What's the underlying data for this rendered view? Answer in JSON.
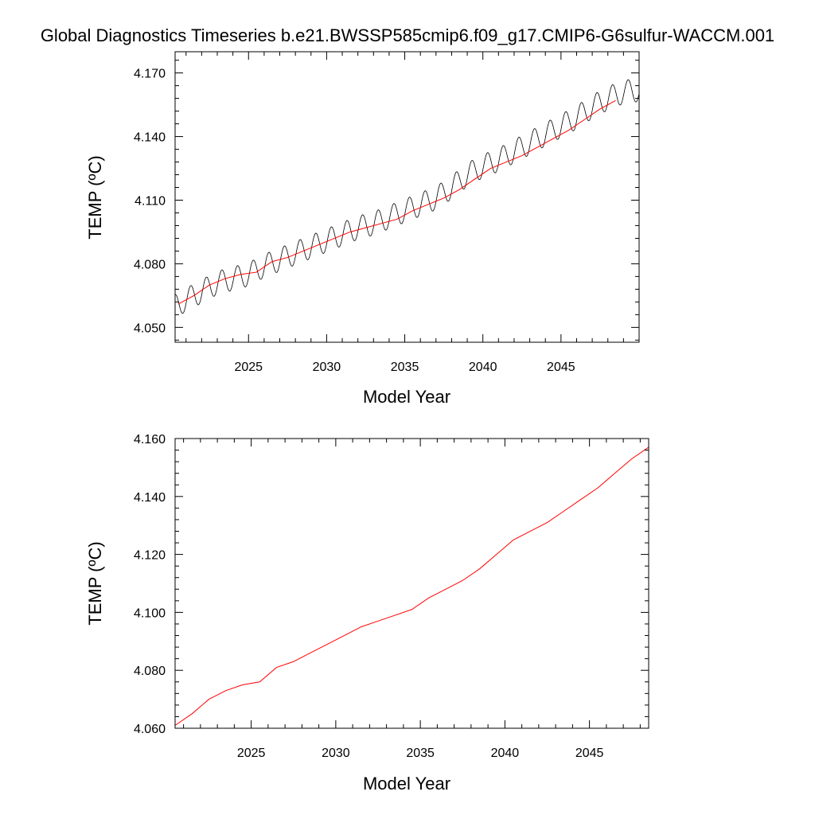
{
  "figure": {
    "title": "Global Diagnostics Timeseries b.e21.BWSSP585cmip6.f09_g17.CMIP6-G6sulfur-WACCM.001"
  },
  "chart_data": [
    {
      "type": "line",
      "xlabel": "Model Year",
      "ylabel": "TEMP (ºC)",
      "xlim": [
        2020.3,
        2050.0
      ],
      "ylim": [
        4.043,
        4.18
      ],
      "x_ticks": [
        2025,
        2030,
        2035,
        2040,
        2045
      ],
      "x_tick_labels": [
        "2025",
        "2030",
        "2035",
        "2040",
        "2045"
      ],
      "y_ticks": [
        4.05,
        4.08,
        4.11,
        4.14,
        4.17
      ],
      "y_tick_labels": [
        "4.050",
        "4.080",
        "4.110",
        "4.140",
        "4.170"
      ],
      "grid": false,
      "series": [
        {
          "color": "#000000",
          "style": "monthly",
          "seasonal_amplitude": 0.0055,
          "x": [
            2020.3,
            2021,
            2022,
            2023,
            2024,
            2025,
            2026,
            2027,
            2028,
            2029,
            2030,
            2031,
            2032,
            2033,
            2034,
            2035,
            2036,
            2037,
            2038,
            2039,
            2040,
            2041,
            2042,
            2043,
            2044,
            2045,
            2046,
            2047,
            2048,
            2049,
            2050.0
          ],
          "values": [
            4.06,
            4.063,
            4.067,
            4.071,
            4.073,
            4.075,
            4.079,
            4.082,
            4.085,
            4.088,
            4.091,
            4.094,
            4.097,
            4.099,
            4.102,
            4.105,
            4.108,
            4.111,
            4.116,
            4.122,
            4.126,
            4.129,
            4.133,
            4.137,
            4.141,
            4.145,
            4.149,
            4.154,
            4.158,
            4.161,
            4.162
          ]
        },
        {
          "color": "#ff0000",
          "style": "annual",
          "x": [
            2020.5,
            2021.5,
            2022.5,
            2023.5,
            2024.5,
            2025.5,
            2026.5,
            2027.5,
            2028.5,
            2029.5,
            2030.5,
            2031.5,
            2032.5,
            2033.5,
            2034.5,
            2035.5,
            2036.5,
            2037.5,
            2038.5,
            2039.5,
            2040.5,
            2041.5,
            2042.5,
            2043.5,
            2044.5,
            2045.5,
            2046.5,
            2047.5,
            2048.5
          ],
          "values": [
            4.061,
            4.065,
            4.07,
            4.073,
            4.075,
            4.076,
            4.081,
            4.083,
            4.086,
            4.089,
            4.092,
            4.095,
            4.097,
            4.099,
            4.101,
            4.105,
            4.108,
            4.111,
            4.115,
            4.12,
            4.125,
            4.128,
            4.131,
            4.135,
            4.139,
            4.143,
            4.148,
            4.153,
            4.157
          ]
        }
      ]
    },
    {
      "type": "line",
      "xlabel": "Model Year",
      "ylabel": "TEMP (ºC)",
      "xlim": [
        2020.5,
        2048.5
      ],
      "ylim": [
        4.06,
        4.16
      ],
      "x_ticks": [
        2025,
        2030,
        2035,
        2040,
        2045
      ],
      "x_tick_labels": [
        "2025",
        "2030",
        "2035",
        "2040",
        "2045"
      ],
      "y_ticks": [
        4.06,
        4.08,
        4.1,
        4.12,
        4.14,
        4.16
      ],
      "y_tick_labels": [
        "4.060",
        "4.080",
        "4.100",
        "4.120",
        "4.140",
        "4.160"
      ],
      "grid": false,
      "series": [
        {
          "color": "#ff0000",
          "style": "annual",
          "x": [
            2020.5,
            2021.5,
            2022.5,
            2023.5,
            2024.5,
            2025.5,
            2026.5,
            2027.5,
            2028.5,
            2029.5,
            2030.5,
            2031.5,
            2032.5,
            2033.5,
            2034.5,
            2035.5,
            2036.5,
            2037.5,
            2038.5,
            2039.5,
            2040.5,
            2041.5,
            2042.5,
            2043.5,
            2044.5,
            2045.5,
            2046.5,
            2047.5,
            2048.5
          ],
          "values": [
            4.061,
            4.065,
            4.07,
            4.073,
            4.075,
            4.076,
            4.081,
            4.083,
            4.086,
            4.089,
            4.092,
            4.095,
            4.097,
            4.099,
            4.101,
            4.105,
            4.108,
            4.111,
            4.115,
            4.12,
            4.125,
            4.128,
            4.131,
            4.135,
            4.139,
            4.143,
            4.148,
            4.153,
            4.157
          ]
        }
      ]
    }
  ]
}
